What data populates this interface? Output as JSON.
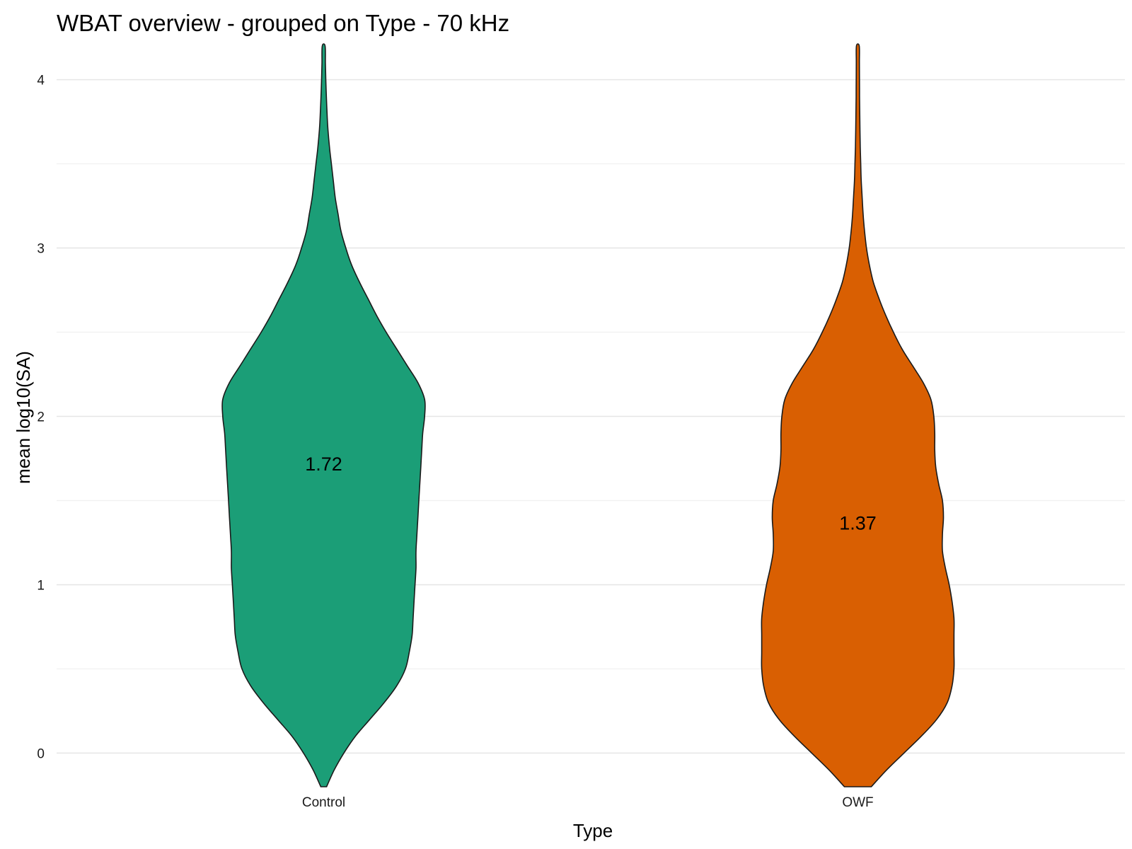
{
  "chart_data": {
    "type": "violin",
    "title": "WBAT overview - grouped on Type - 70 kHz",
    "xlabel": "Type",
    "ylabel": "mean log10(SA)",
    "categories": [
      "Control",
      "OWF"
    ],
    "ylim": [
      -0.2,
      4.2
    ],
    "yticks": [
      "0",
      "1",
      "2",
      "3",
      "4"
    ],
    "grid": true,
    "legend": "none",
    "series": [
      {
        "category": "Control",
        "color": "#1b9e77",
        "mean_label": "1.72",
        "density": {
          "y": [
            -0.2,
            -0.1,
            0.0,
            0.1,
            0.2,
            0.3,
            0.4,
            0.5,
            0.6,
            0.7,
            0.8,
            0.9,
            1.0,
            1.1,
            1.2,
            1.3,
            1.4,
            1.5,
            1.6,
            1.7,
            1.8,
            1.9,
            2.0,
            2.1,
            2.2,
            2.3,
            2.4,
            2.5,
            2.6,
            2.7,
            2.8,
            2.9,
            3.0,
            3.1,
            3.2,
            3.3,
            3.4,
            3.5,
            3.6,
            3.7,
            3.8,
            3.9,
            4.0,
            4.1,
            4.2
          ],
          "half_width": [
            0.03,
            0.11,
            0.21,
            0.33,
            0.48,
            0.63,
            0.76,
            0.85,
            0.89,
            0.92,
            0.93,
            0.94,
            0.95,
            0.96,
            0.96,
            0.97,
            0.98,
            0.99,
            1.0,
            1.01,
            1.02,
            1.03,
            1.05,
            1.05,
            0.98,
            0.87,
            0.76,
            0.65,
            0.55,
            0.46,
            0.37,
            0.29,
            0.23,
            0.18,
            0.15,
            0.12,
            0.1,
            0.08,
            0.06,
            0.045,
            0.035,
            0.028,
            0.022,
            0.018,
            0.015
          ]
        }
      },
      {
        "category": "OWF",
        "color": "#d95f02",
        "mean_label": "1.37",
        "density": {
          "y": [
            -0.2,
            -0.1,
            0.0,
            0.1,
            0.2,
            0.3,
            0.4,
            0.5,
            0.6,
            0.7,
            0.8,
            0.9,
            1.0,
            1.1,
            1.2,
            1.3,
            1.4,
            1.5,
            1.6,
            1.7,
            1.8,
            1.9,
            2.0,
            2.1,
            2.2,
            2.3,
            2.4,
            2.5,
            2.6,
            2.7,
            2.8,
            2.9,
            3.0,
            3.1,
            3.2,
            3.3,
            3.4,
            3.5,
            3.6,
            3.7,
            3.8,
            3.9,
            4.0,
            4.1,
            4.2
          ],
          "half_width": [
            0.14,
            0.3,
            0.48,
            0.66,
            0.82,
            0.93,
            0.98,
            1.0,
            1.0,
            1.0,
            1.0,
            0.98,
            0.95,
            0.91,
            0.88,
            0.88,
            0.89,
            0.88,
            0.84,
            0.81,
            0.8,
            0.8,
            0.79,
            0.76,
            0.68,
            0.57,
            0.46,
            0.37,
            0.29,
            0.22,
            0.16,
            0.12,
            0.09,
            0.07,
            0.055,
            0.045,
            0.035,
            0.03,
            0.025,
            0.022,
            0.02,
            0.018,
            0.017,
            0.016,
            0.015
          ]
        }
      }
    ]
  }
}
